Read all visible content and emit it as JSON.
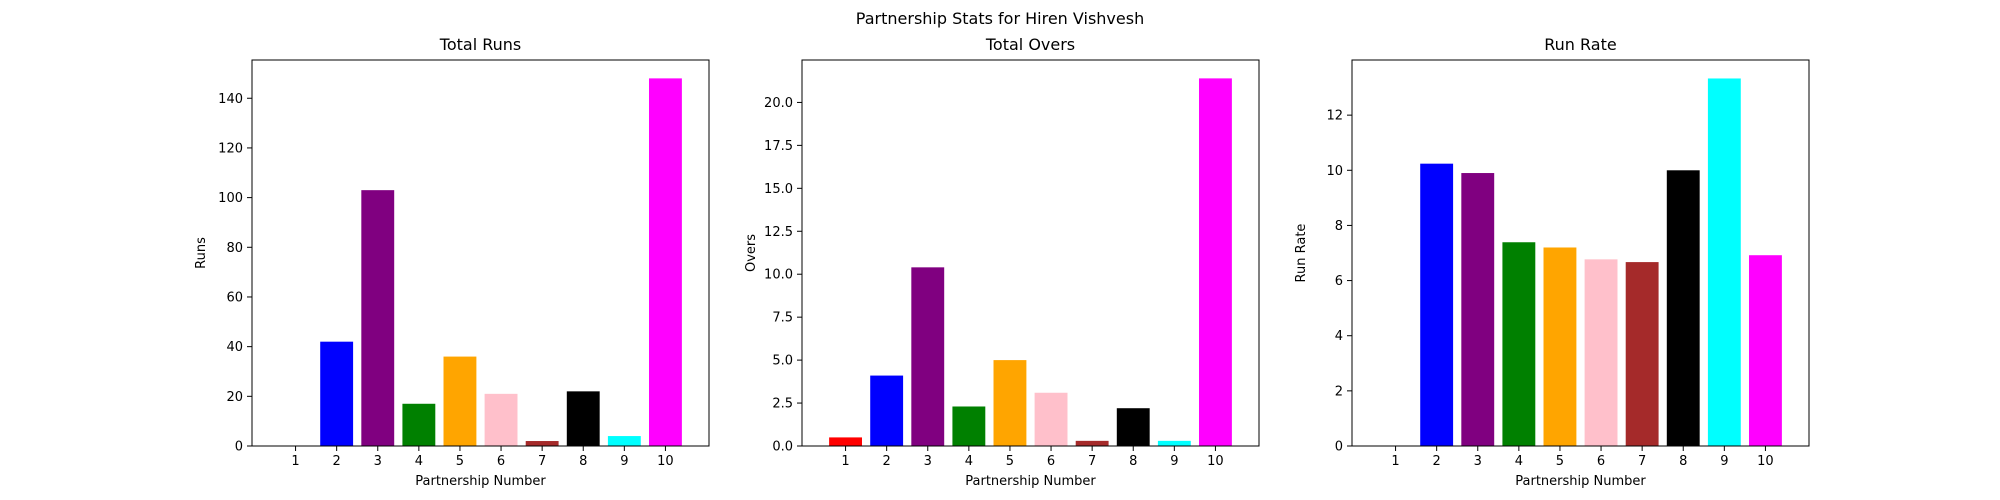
{
  "figure": {
    "suptitle": "Partnership Stats for Hiren Vishvesh"
  },
  "chart_data": [
    {
      "type": "bar",
      "title": "Total Runs",
      "xlabel": "Partnership Number",
      "ylabel": "Runs",
      "categories": [
        "1",
        "2",
        "3",
        "4",
        "5",
        "6",
        "7",
        "8",
        "9",
        "10"
      ],
      "values": [
        0,
        42,
        103,
        17,
        36,
        21,
        2,
        22,
        4,
        148
      ],
      "colors": [
        "#ff0000",
        "#0000ff",
        "#800080",
        "#008000",
        "#ffa500",
        "#ffc0cb",
        "#a52a2a",
        "#000000",
        "#00ffff",
        "#ff00ff"
      ],
      "ylim": [
        0,
        155.4
      ],
      "yticks": [
        0,
        20,
        40,
        60,
        80,
        100,
        120,
        140
      ],
      "ytick_labels": [
        "0",
        "20",
        "40",
        "60",
        "80",
        "100",
        "120",
        "140"
      ],
      "grid": false
    },
    {
      "type": "bar",
      "title": "Total Overs",
      "xlabel": "Partnership Number",
      "ylabel": "Overs",
      "categories": [
        "1",
        "2",
        "3",
        "4",
        "5",
        "6",
        "7",
        "8",
        "9",
        "10"
      ],
      "values": [
        0.5,
        4.1,
        10.4,
        2.3,
        5.0,
        3.1,
        0.3,
        2.2,
        0.3,
        21.4
      ],
      "colors": [
        "#ff0000",
        "#0000ff",
        "#800080",
        "#008000",
        "#ffa500",
        "#ffc0cb",
        "#a52a2a",
        "#000000",
        "#00ffff",
        "#ff00ff"
      ],
      "ylim": [
        0,
        22.47
      ],
      "yticks": [
        0,
        2.5,
        5,
        7.5,
        10,
        12.5,
        15,
        17.5,
        20
      ],
      "ytick_labels": [
        "0.0",
        "2.5",
        "5.0",
        "7.5",
        "10.0",
        "12.5",
        "15.0",
        "17.5",
        "20.0"
      ],
      "grid": false
    },
    {
      "type": "bar",
      "title": "Run Rate",
      "xlabel": "Partnership Number",
      "ylabel": "Run Rate",
      "categories": [
        "1",
        "2",
        "3",
        "4",
        "5",
        "6",
        "7",
        "8",
        "9",
        "10"
      ],
      "values": [
        0,
        10.24,
        9.9,
        7.39,
        7.2,
        6.77,
        6.67,
        10.0,
        13.33,
        6.92
      ],
      "colors": [
        "#ff0000",
        "#0000ff",
        "#800080",
        "#008000",
        "#ffa500",
        "#ffc0cb",
        "#a52a2a",
        "#000000",
        "#00ffff",
        "#ff00ff"
      ],
      "ylim": [
        0,
        14.0
      ],
      "yticks": [
        0,
        2,
        4,
        6,
        8,
        10,
        12
      ],
      "ytick_labels": [
        "0",
        "2",
        "4",
        "6",
        "8",
        "10",
        "12"
      ],
      "grid": false
    }
  ]
}
